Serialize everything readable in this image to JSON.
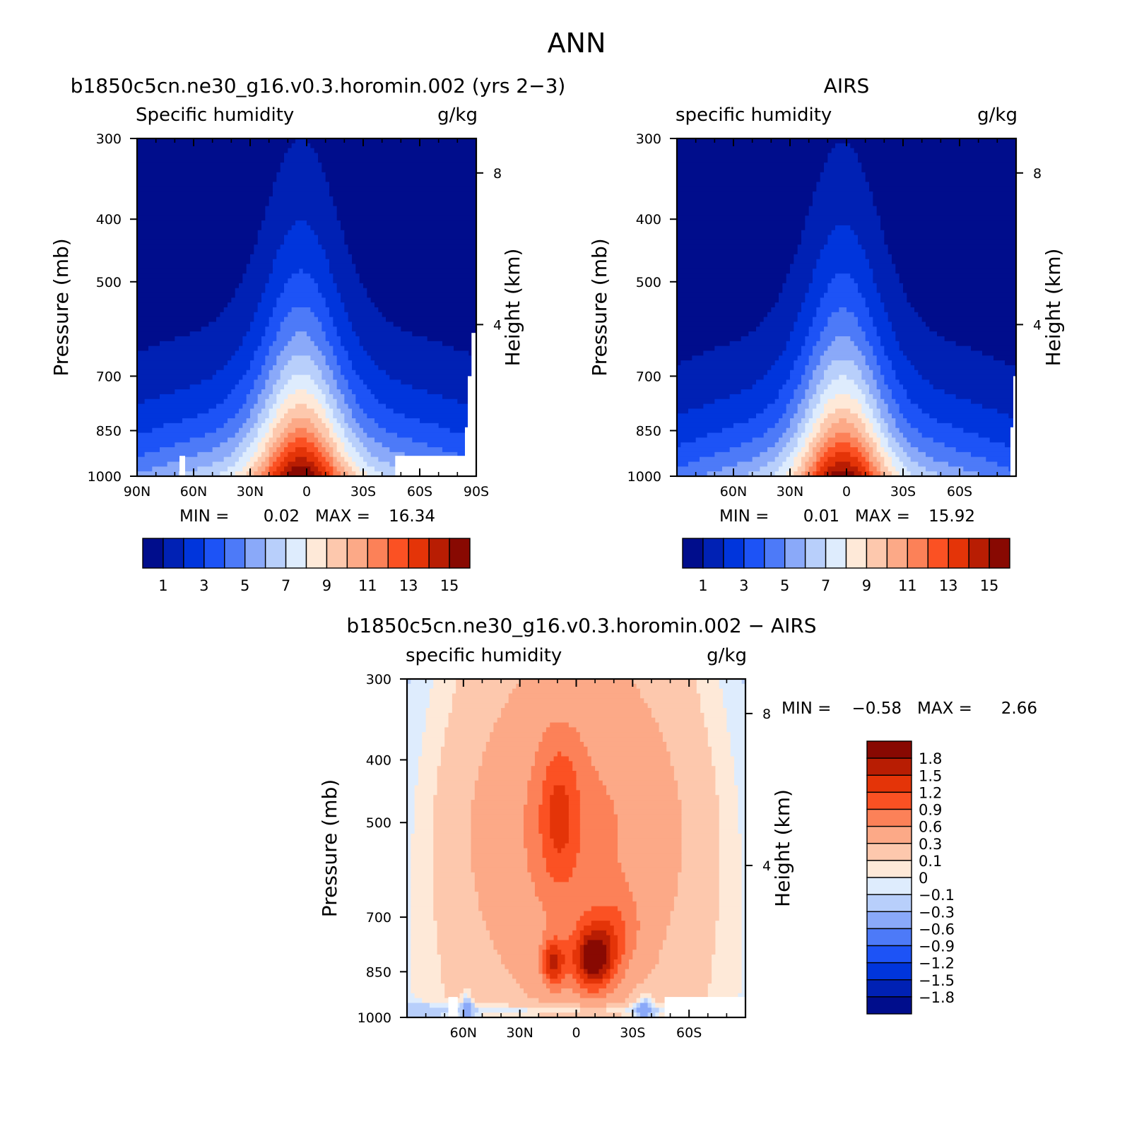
{
  "figure": {
    "title": "ANN",
    "colors": {
      "abs_levels": [
        "#000d8c",
        "#0021b4",
        "#0035dc",
        "#1d53f6",
        "#4d7af8",
        "#8aa9f9",
        "#b8cffb",
        "#deecfd",
        "#fee9d8",
        "#fdc8ad",
        "#fca987",
        "#fc8158",
        "#fb5123",
        "#e43408",
        "#b81d03",
        "#880902"
      ],
      "diff_levels": [
        "#000d8c",
        "#0021b4",
        "#0035dc",
        "#1d53f6",
        "#4d7af8",
        "#8aa9f9",
        "#b8cffb",
        "#deecfd",
        "#fee9d8",
        "#fdc8ad",
        "#fca987",
        "#fc8158",
        "#fb5123",
        "#e43408",
        "#b81d03",
        "#880902"
      ]
    }
  },
  "chart_data": [
    {
      "id": "model",
      "type": "contour",
      "title": "b1850c5cn.ne30_g16.v0.3.horomin.002 (yrs 2-3)",
      "variable": "Specific humidity",
      "units": "g/kg",
      "ylabel": "Pressure (mb)",
      "y2label": "Height (km)",
      "x_ticks": [
        "90N",
        "60N",
        "30N",
        "0",
        "30S",
        "60S",
        "90S"
      ],
      "x_tick_values": [
        -90,
        -60,
        -30,
        0,
        30,
        60,
        90
      ],
      "y_ticks": [
        "300",
        "400",
        "500",
        "700",
        "850",
        "1000"
      ],
      "y_tick_values": [
        300,
        400,
        500,
        700,
        850,
        1000
      ],
      "y2_ticks": [
        "8",
        "4"
      ],
      "y2_tick_values": [
        8,
        4
      ],
      "xlim": [
        -90,
        90
      ],
      "ylim": [
        1000,
        300
      ],
      "yscale": "log-pressure",
      "stats": {
        "min_label": "MIN =",
        "min": "0.02",
        "max_label": "MAX =",
        "max": "16.34"
      },
      "colorbar": {
        "orientation": "horizontal",
        "labels": [
          "1",
          "3",
          "5",
          "7",
          "9",
          "11",
          "13",
          "15"
        ],
        "levels": [
          1,
          2,
          3,
          4,
          5,
          6,
          7,
          8,
          9,
          10,
          11,
          12,
          13,
          14,
          15
        ]
      },
      "field": {
        "sfc": 8.0,
        "peak": 16.3,
        "lat_shift": 3,
        "polar_floor": 0.4
      },
      "missing_regions": [
        {
          "lat": [
            -67.5,
            -64.5
          ],
          "p": [
            930,
            1000
          ]
        },
        {
          "lat": [
            47,
            88
          ],
          "p": [
            930,
            1000
          ]
        },
        {
          "lat": [
            84,
            90
          ],
          "p": [
            840,
            1000
          ]
        },
        {
          "lat": [
            85.5,
            90
          ],
          "p": [
            700,
            1000
          ]
        },
        {
          "lat": [
            87.5,
            90
          ],
          "p": [
            600,
            1000
          ]
        }
      ]
    },
    {
      "id": "obs",
      "type": "contour",
      "title": "AIRS",
      "variable": "specific humidity",
      "units": "g/kg",
      "ylabel": "Pressure (mb)",
      "y2label": "Height (km)",
      "x_ticks": [
        "60N",
        "30N",
        "0",
        "30S",
        "60S"
      ],
      "x_tick_values": [
        -60,
        -30,
        0,
        30,
        60
      ],
      "y_ticks": [
        "300",
        "400",
        "500",
        "700",
        "850",
        "1000"
      ],
      "y_tick_values": [
        300,
        400,
        500,
        700,
        850,
        1000
      ],
      "y2_ticks": [
        "8",
        "4"
      ],
      "y2_tick_values": [
        8,
        4
      ],
      "xlim": [
        -90,
        90
      ],
      "ylim": [
        1000,
        300
      ],
      "yscale": "log-pressure",
      "stats": {
        "min_label": "MIN =",
        "min": "0.01",
        "max_label": "MAX =",
        "max": "15.92"
      },
      "colorbar": {
        "orientation": "horizontal",
        "labels": [
          "1",
          "3",
          "5",
          "7",
          "9",
          "11",
          "13",
          "15"
        ],
        "levels": [
          1,
          2,
          3,
          4,
          5,
          6,
          7,
          8,
          9,
          10,
          11,
          12,
          13,
          14,
          15
        ]
      },
      "field": {
        "sfc": 7.3,
        "peak": 15.9,
        "lat_shift": 2,
        "polar_floor": 0.3
      },
      "missing_regions": [
        {
          "lat": [
            87,
            90
          ],
          "p": [
            840,
            1000
          ]
        },
        {
          "lat": [
            88.5,
            90
          ],
          "p": [
            700,
            1000
          ]
        }
      ]
    },
    {
      "id": "diff",
      "type": "contour",
      "title": "b1850c5cn.ne30_g16.v0.3.horomin.002 - AIRS",
      "variable": "specific humidity",
      "units": "g/kg",
      "ylabel": "Pressure (mb)",
      "y2label": "Height (km)",
      "x_ticks": [
        "60N",
        "30N",
        "0",
        "30S",
        "60S"
      ],
      "x_tick_values": [
        -60,
        -30,
        0,
        30,
        60
      ],
      "y_ticks": [
        "300",
        "400",
        "500",
        "700",
        "850",
        "1000"
      ],
      "y_tick_values": [
        300,
        400,
        500,
        700,
        850,
        1000
      ],
      "y2_ticks": [
        "8",
        "4"
      ],
      "y2_tick_values": [
        8,
        4
      ],
      "xlim": [
        -90,
        90
      ],
      "ylim": [
        1000,
        300
      ],
      "yscale": "log-pressure",
      "stats": {
        "min_label": "MIN =",
        "min": "-0.58",
        "max_label": "MAX =",
        "max": "2.66"
      },
      "colorbar": {
        "orientation": "vertical",
        "labels": [
          "1.8",
          "1.5",
          "1.2",
          "0.9",
          "0.6",
          "0.3",
          "0.1",
          "0",
          "-0.1",
          "-0.3",
          "-0.6",
          "-0.9",
          "-1.2",
          "-1.5",
          "-1.8"
        ],
        "levels": [
          -1.8,
          -1.5,
          -1.2,
          -0.9,
          -0.6,
          -0.3,
          -0.1,
          0,
          0.1,
          0.3,
          0.6,
          0.9,
          1.2,
          1.5,
          1.8
        ]
      },
      "missing_regions": [
        {
          "lat": [
            -68,
            -63
          ],
          "p": [
            930,
            1000
          ]
        },
        {
          "lat": [
            47,
            90
          ],
          "p": [
            930,
            1000
          ]
        }
      ]
    }
  ]
}
